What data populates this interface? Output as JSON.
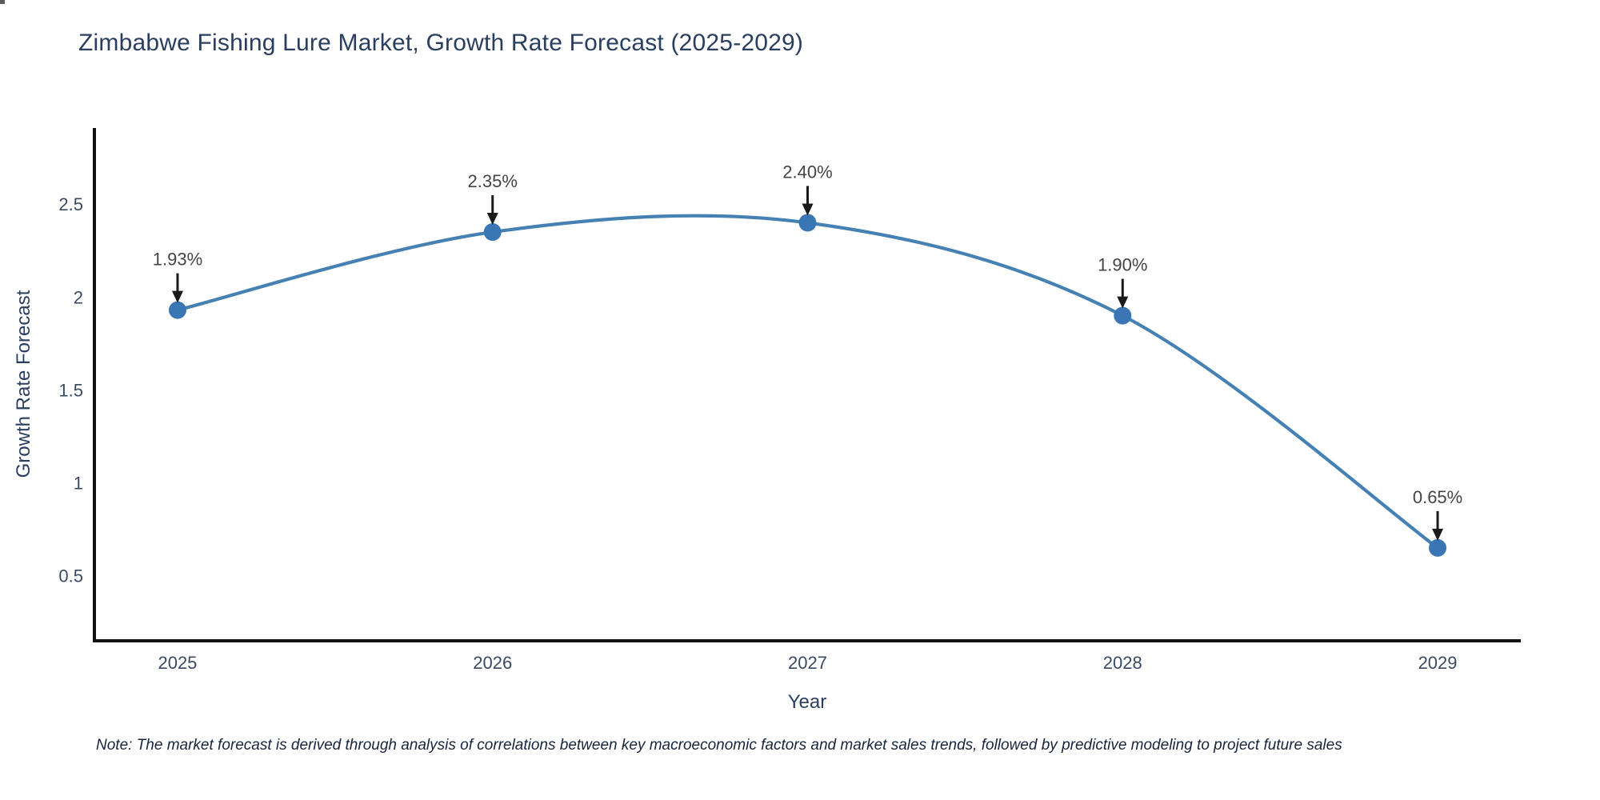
{
  "chart": {
    "title": "Zimbabwe Fishing Lure Market, Growth Rate Forecast (2025-2029)",
    "x_title": "Year",
    "y_title": "Growth Rate Forecast",
    "note": "Note: The market forecast is derived through analysis of correlations between key macroeconomic factors and market sales trends, followed by predictive modeling to project future sales"
  },
  "chart_data": {
    "type": "line",
    "line_shape": "spline",
    "title": "Zimbabwe Fishing Lure Market, Growth Rate Forecast (2025-2029)",
    "xlabel": "Year",
    "ylabel": "Growth Rate Forecast",
    "x": [
      2025,
      2026,
      2027,
      2028,
      2029
    ],
    "values": [
      1.93,
      2.35,
      2.4,
      1.9,
      0.65
    ],
    "point_labels": [
      "1.93%",
      "2.35%",
      "2.40%",
      "1.90%",
      "0.65%"
    ],
    "xticks": [
      "2025",
      "2026",
      "2027",
      "2028",
      "2029"
    ],
    "yticks": [
      0.5,
      1,
      1.5,
      2,
      2.5
    ],
    "xlim": [
      2024.736,
      2029.264
    ],
    "ylim": [
      0.15,
      2.91
    ],
    "grid": false,
    "legend": false,
    "annotation_style": "value label with black down-arrow to each marker",
    "colors": {
      "line": "#4681b4",
      "marker": "#3a76b4",
      "axis_line": "#111111",
      "arrow": "#1a1a1a",
      "title_text": "#2a3f5f",
      "tick_text": "#3b4a63",
      "annotation_text": "#444444",
      "note_text": "#18243c",
      "background": "#ffffff"
    }
  }
}
